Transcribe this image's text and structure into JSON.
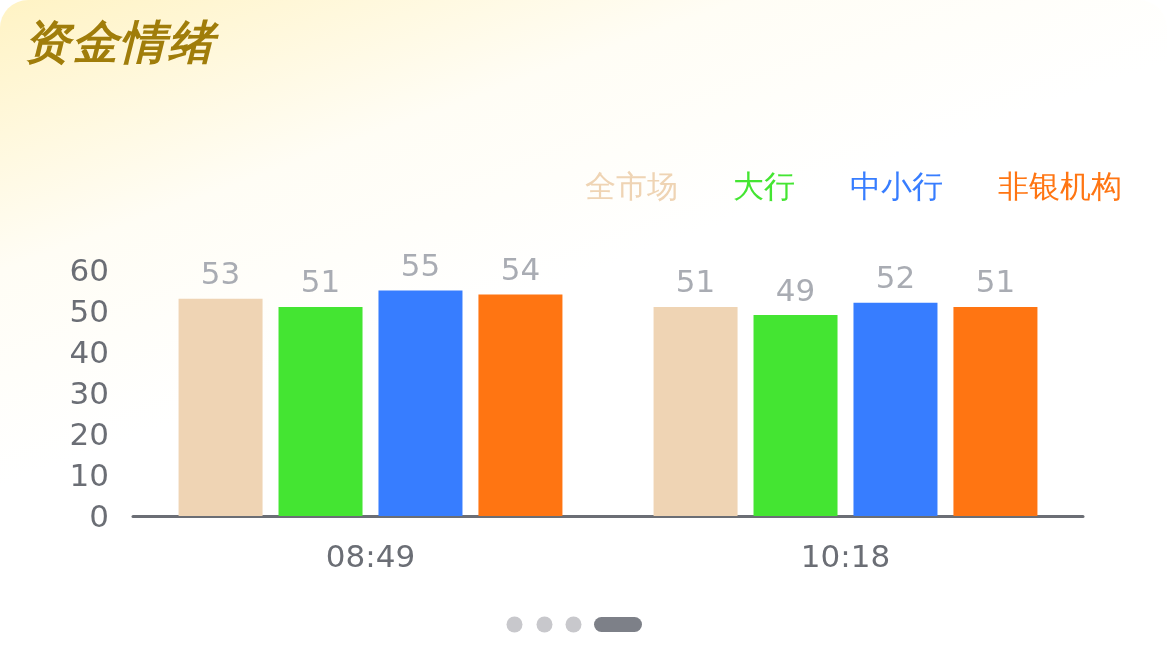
{
  "chart_data": {
    "type": "bar",
    "title": "资金情绪",
    "categories": [
      "08:49",
      "10:18"
    ],
    "series": [
      {
        "name": "全市场",
        "color": "#efd4b4",
        "values": [
          53,
          51
        ]
      },
      {
        "name": "大行",
        "color": "#44e532",
        "values": [
          51,
          49
        ]
      },
      {
        "name": "中小行",
        "color": "#377dff",
        "values": [
          55,
          52
        ]
      },
      {
        "name": "非银机构",
        "color": "#ff7512",
        "values": [
          54,
          51
        ]
      }
    ],
    "ylim": [
      0,
      60
    ],
    "yticks": [
      0,
      10,
      20,
      30,
      40,
      50,
      60
    ],
    "grid": false,
    "legend": "top right",
    "data_labels": true
  }
}
